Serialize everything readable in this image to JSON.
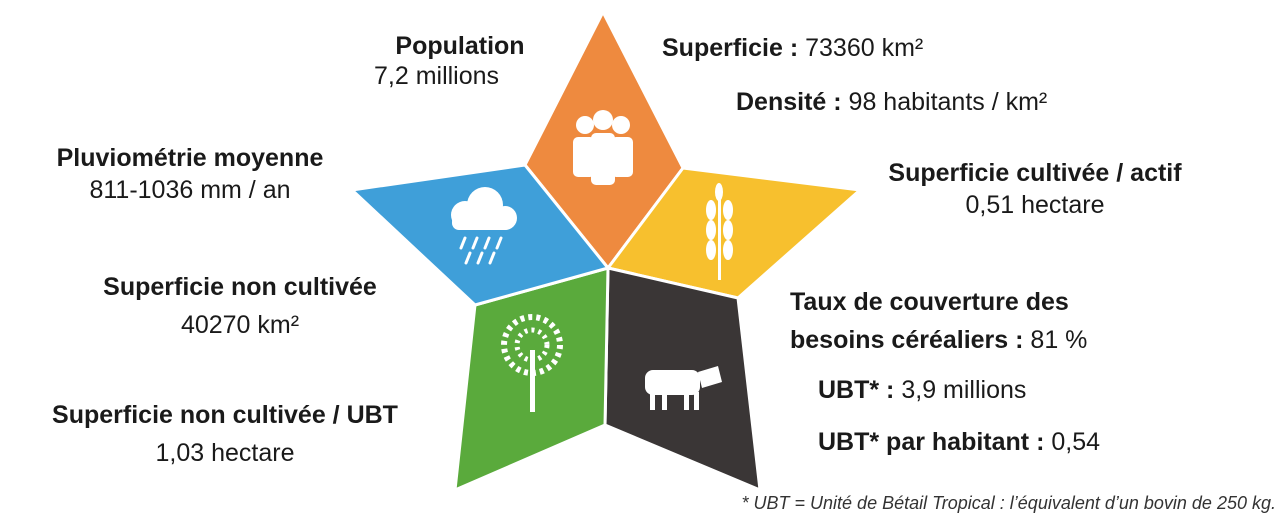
{
  "items": [
    {
      "title": "Population",
      "value": "7,2 millions"
    },
    {
      "title": "Superficie :",
      "value": "73360 km²"
    },
    {
      "title": "Densité :",
      "value": "98 habitants / km²"
    },
    {
      "title": "Pluviométrie moyenne",
      "value": "811-1036 mm / an"
    },
    {
      "title": "Superficie cultivée / actif",
      "value": "0,51 hectare"
    },
    {
      "title": "Superficie non cultivée",
      "value": "40270 km²"
    },
    {
      "title": "Taux de couverture des besoins céréaliers :",
      "value": "81 %"
    },
    {
      "title": "Superficie non cultivée / UBT",
      "value": "1,03 hectare"
    },
    {
      "title": "UBT* :",
      "value": "3,9 millions"
    },
    {
      "title": "UBT* par habitant :",
      "value": "0,54"
    }
  ],
  "footnote": "* UBT = Unité de Bétail Tropical : l’équivalent d’un bovin de 250 kg."
}
